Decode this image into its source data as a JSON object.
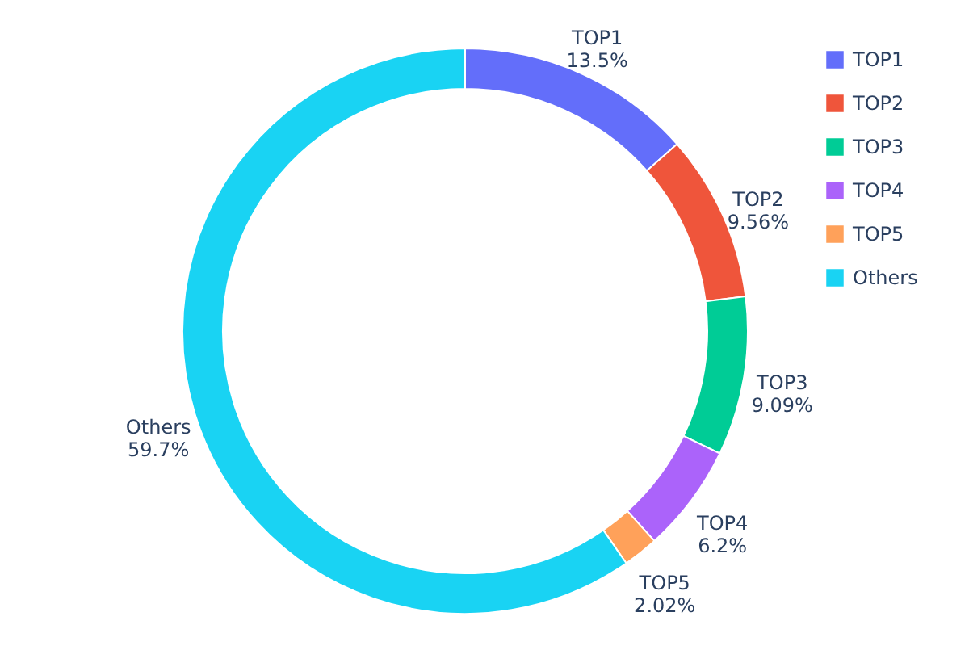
{
  "chart_data": {
    "type": "donut",
    "categories": [
      "TOP1",
      "TOP2",
      "TOP3",
      "TOP4",
      "TOP5",
      "Others"
    ],
    "values": [
      13.5,
      9.56,
      9.09,
      6.2,
      2.02,
      59.7
    ],
    "value_labels": [
      "13.5%",
      "9.56%",
      "9.09%",
      "6.2%",
      "2.02%",
      "59.7%"
    ],
    "colors": [
      "#636efa",
      "#ef553b",
      "#00cc96",
      "#ab63fa",
      "#ffa15a",
      "#19d3f3"
    ],
    "legend": "top right"
  }
}
